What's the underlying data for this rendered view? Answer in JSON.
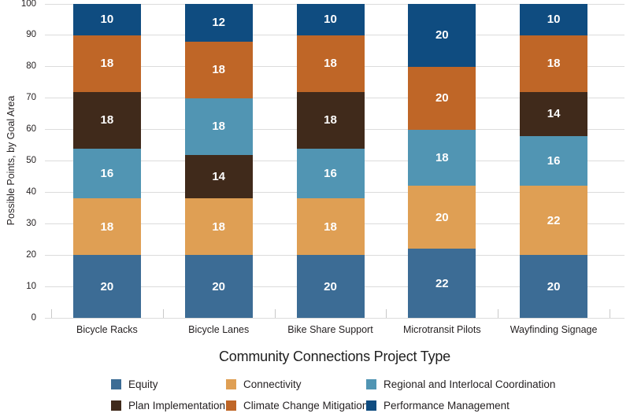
{
  "colors": {
    "background": "#ffffff",
    "gridline": "#dcdcdc",
    "axis_tick": "#c9c9c9",
    "text": "#231f20",
    "bar_value_text": "#ffffff"
  },
  "chart_data": {
    "type": "bar",
    "stacked": true,
    "title": "",
    "xlabel": "Community Connections Project Type",
    "ylabel": "Possible Points, by Goal Area",
    "ylim": [
      0,
      100
    ],
    "yticks": [
      0,
      10,
      20,
      30,
      40,
      50,
      60,
      70,
      80,
      90,
      100
    ],
    "grid": true,
    "legend_position": "bottom",
    "value_labels": "inside, white bold",
    "categories": [
      "Bicycle Racks",
      "Bicycle Lanes",
      "Bike Share Support",
      "Microtransit Pilots",
      "Wayfinding Signage"
    ],
    "series": [
      {
        "name": "Equity",
        "color": "#3c6c95",
        "values": [
          20,
          20,
          20,
          22,
          20
        ]
      },
      {
        "name": "Connectivity",
        "color": "#df9f54",
        "values": [
          18,
          18,
          18,
          20,
          22
        ]
      },
      {
        "name": "Regional and Interlocal Coordination",
        "color": "#5195b3",
        "values": [
          16,
          18,
          16,
          18,
          16
        ]
      },
      {
        "name": "Plan Implementation",
        "color": "#402a1b",
        "values": [
          18,
          14,
          18,
          0,
          14
        ]
      },
      {
        "name": "Climate Change Mitigation",
        "color": "#bf6627",
        "values": [
          18,
          18,
          18,
          20,
          18
        ]
      },
      {
        "name": "Performance Management",
        "color": "#0f4c80",
        "values": [
          10,
          12,
          10,
          20,
          10
        ]
      }
    ],
    "bars": [
      {
        "category": "Bicycle Racks",
        "stack_bottom_to_top": [
          {
            "series": "Equity",
            "value": 20
          },
          {
            "series": "Connectivity",
            "value": 18
          },
          {
            "series": "Regional and Interlocal Coordination",
            "value": 16
          },
          {
            "series": "Plan Implementation",
            "value": 18
          },
          {
            "series": "Climate Change Mitigation",
            "value": 18
          },
          {
            "series": "Performance Management",
            "value": 10
          }
        ]
      },
      {
        "category": "Bicycle Lanes",
        "stack_bottom_to_top": [
          {
            "series": "Equity",
            "value": 20
          },
          {
            "series": "Connectivity",
            "value": 18
          },
          {
            "series": "Plan Implementation",
            "value": 14
          },
          {
            "series": "Regional and Interlocal Coordination",
            "value": 18
          },
          {
            "series": "Climate Change Mitigation",
            "value": 18
          },
          {
            "series": "Performance Management",
            "value": 12
          }
        ]
      },
      {
        "category": "Bike Share Support",
        "stack_bottom_to_top": [
          {
            "series": "Equity",
            "value": 20
          },
          {
            "series": "Connectivity",
            "value": 18
          },
          {
            "series": "Regional and Interlocal Coordination",
            "value": 16
          },
          {
            "series": "Plan Implementation",
            "value": 18
          },
          {
            "series": "Climate Change Mitigation",
            "value": 18
          },
          {
            "series": "Performance Management",
            "value": 10
          }
        ]
      },
      {
        "category": "Microtransit Pilots",
        "stack_bottom_to_top": [
          {
            "series": "Equity",
            "value": 22
          },
          {
            "series": "Connectivity",
            "value": 20
          },
          {
            "series": "Regional and Interlocal Coordination",
            "value": 18
          },
          {
            "series": "Climate Change Mitigation",
            "value": 20
          },
          {
            "series": "Performance Management",
            "value": 20
          }
        ]
      },
      {
        "category": "Wayfinding Signage",
        "stack_bottom_to_top": [
          {
            "series": "Equity",
            "value": 20
          },
          {
            "series": "Connectivity",
            "value": 22
          },
          {
            "series": "Regional and Interlocal Coordination",
            "value": 16
          },
          {
            "series": "Plan Implementation",
            "value": 14
          },
          {
            "series": "Climate Change Mitigation",
            "value": 18
          },
          {
            "series": "Performance Management",
            "value": 10
          }
        ]
      }
    ],
    "legend_rows": [
      [
        "Equity",
        "Connectivity",
        "Regional and Interlocal Coordination"
      ],
      [
        "Plan Implementation",
        "Climate Change Mitigation",
        "Performance Management"
      ]
    ]
  }
}
